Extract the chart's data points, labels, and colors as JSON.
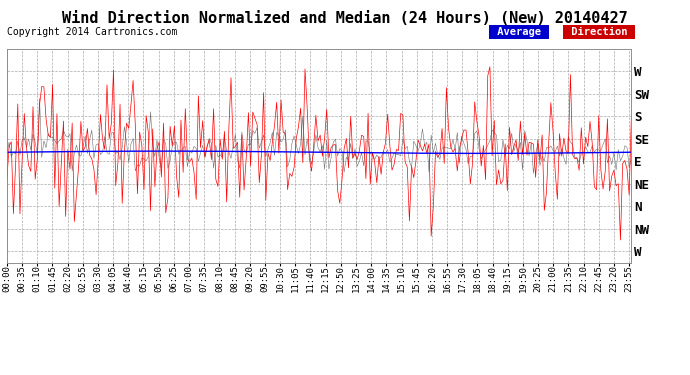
{
  "title": "Wind Direction Normalized and Median (24 Hours) (New) 20140427",
  "copyright": "Copyright 2014 Cartronics.com",
  "y_labels": [
    "W",
    "SW",
    "S",
    "SE",
    "E",
    "NE",
    "N",
    "NW",
    "W"
  ],
  "legend_avg_label": "Average",
  "legend_dir_label": "Direction",
  "legend_avg_color": "#0000cc",
  "legend_dir_color": "#cc0000",
  "line_color_red": "#ff0000",
  "line_color_dark": "#333333",
  "median_line_color": "#0000ff",
  "bg_color": "#ffffff",
  "plot_bg_color": "#ffffff",
  "grid_color": "#aaaaaa",
  "title_fontsize": 11,
  "copyright_fontsize": 7,
  "tick_fontsize": 6.5,
  "x_tick_times": [
    "00:00",
    "00:35",
    "01:10",
    "01:45",
    "02:20",
    "02:55",
    "03:30",
    "04:05",
    "04:40",
    "05:15",
    "05:50",
    "06:25",
    "07:00",
    "07:35",
    "08:10",
    "08:45",
    "09:20",
    "09:55",
    "10:30",
    "11:05",
    "11:40",
    "12:15",
    "12:50",
    "13:25",
    "14:00",
    "14:35",
    "15:10",
    "15:45",
    "16:20",
    "16:55",
    "17:30",
    "18:05",
    "18:40",
    "19:15",
    "19:50",
    "20:25",
    "21:00",
    "21:35",
    "22:10",
    "22:45",
    "23:20",
    "23:55"
  ],
  "e_level": 4.5,
  "avg_level": 4.4
}
